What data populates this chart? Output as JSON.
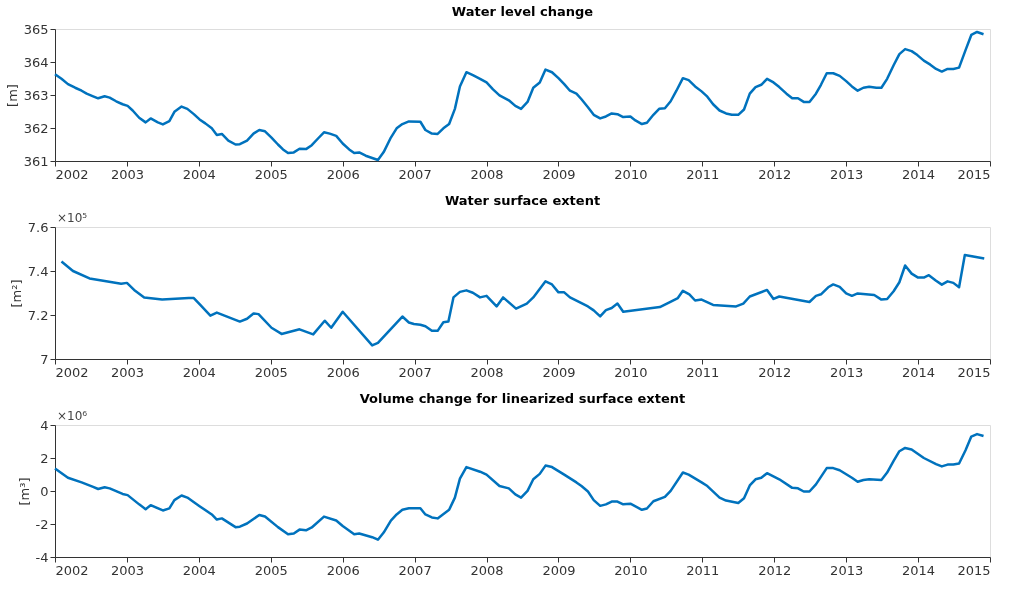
{
  "chart_data": [
    {
      "type": "line",
      "title": "Water level change",
      "ylabel": "[m]",
      "xlim": [
        2002,
        2015
      ],
      "xticks": [
        2002,
        2003,
        2004,
        2005,
        2006,
        2007,
        2008,
        2009,
        2010,
        2011,
        2012,
        2013,
        2014,
        2015
      ],
      "ylim": [
        361,
        365
      ],
      "yticks": [
        361,
        362,
        363,
        364,
        365
      ],
      "series": [
        {
          "color": "#0072bd",
          "x": [
            2002.0,
            2002.09,
            2002.18,
            2002.28,
            2002.37,
            2002.44,
            2002.53,
            2002.6,
            2002.69,
            2002.76,
            2002.85,
            2002.94,
            2003.01,
            2003.08,
            2003.17,
            2003.26,
            2003.33,
            2003.43,
            2003.5,
            2003.59,
            2003.66,
            2003.76,
            2003.84,
            2003.93,
            2004.01,
            2004.09,
            2004.18,
            2004.25,
            2004.32,
            2004.41,
            2004.51,
            2004.57,
            2004.67,
            2004.76,
            2004.84,
            2004.92,
            2005.01,
            2005.1,
            2005.17,
            2005.24,
            2005.32,
            2005.4,
            2005.49,
            2005.57,
            2005.66,
            2005.74,
            2005.82,
            2005.91,
            2006.0,
            2006.09,
            2006.16,
            2006.23,
            2006.32,
            2006.41,
            2006.49,
            2006.57,
            2006.67,
            2006.75,
            2006.83,
            2006.92,
            2007.08,
            2007.15,
            2007.24,
            2007.32,
            2007.4,
            2007.48,
            2007.56,
            2007.63,
            2007.72,
            2007.81,
            2007.91,
            2008.0,
            2008.09,
            2008.18,
            2008.31,
            2008.4,
            2008.48,
            2008.57,
            2008.65,
            2008.74,
            2008.82,
            2008.91,
            2009.0,
            2009.08,
            2009.16,
            2009.25,
            2009.32,
            2009.41,
            2009.49,
            2009.58,
            2009.66,
            2009.74,
            2009.82,
            2009.9,
            2010.0,
            2010.07,
            2010.16,
            2010.23,
            2010.32,
            2010.4,
            2010.48,
            2010.56,
            2010.64,
            2010.73,
            2010.81,
            2010.9,
            2010.99,
            2011.07,
            2011.15,
            2011.24,
            2011.33,
            2011.41,
            2011.5,
            2011.58,
            2011.66,
            2011.74,
            2011.82,
            2011.9,
            2011.99,
            2012.07,
            2012.17,
            2012.25,
            2012.33,
            2012.41,
            2012.49,
            2012.58,
            2012.65,
            2012.73,
            2012.82,
            2012.91,
            2013.0,
            2013.08,
            2013.16,
            2013.24,
            2013.32,
            2013.42,
            2013.49,
            2013.57,
            2013.66,
            2013.74,
            2013.82,
            2013.91,
            2013.99,
            2014.08,
            2014.17,
            2014.25,
            2014.33,
            2014.41,
            2014.49,
            2014.57,
            2014.66,
            2014.74,
            2014.82,
            2014.91
          ],
          "values": [
            363.63,
            363.49,
            363.33,
            363.22,
            363.13,
            363.04,
            362.96,
            362.9,
            362.96,
            362.92,
            362.81,
            362.72,
            362.67,
            362.53,
            362.31,
            362.17,
            362.29,
            362.17,
            362.11,
            362.21,
            362.49,
            362.65,
            362.58,
            362.42,
            362.26,
            362.14,
            361.99,
            361.79,
            361.82,
            361.62,
            361.5,
            361.51,
            361.62,
            361.83,
            361.94,
            361.9,
            361.71,
            361.5,
            361.35,
            361.24,
            361.26,
            361.37,
            361.36,
            361.48,
            361.69,
            361.87,
            361.83,
            361.76,
            361.53,
            361.35,
            361.24,
            361.26,
            361.16,
            361.09,
            361.03,
            361.27,
            361.71,
            361.99,
            362.12,
            362.2,
            362.19,
            361.94,
            361.83,
            361.82,
            361.99,
            362.12,
            362.58,
            363.26,
            363.69,
            363.6,
            363.49,
            363.38,
            363.17,
            362.99,
            362.84,
            362.67,
            362.58,
            362.79,
            363.22,
            363.38,
            363.77,
            363.69,
            363.51,
            363.33,
            363.13,
            363.04,
            362.87,
            362.63,
            362.4,
            362.29,
            362.35,
            362.44,
            362.42,
            362.33,
            362.35,
            362.23,
            362.12,
            362.16,
            362.4,
            362.58,
            362.6,
            362.81,
            363.13,
            363.51,
            363.45,
            363.26,
            363.11,
            362.95,
            362.72,
            362.53,
            362.44,
            362.4,
            362.4,
            362.56,
            363.04,
            363.24,
            363.31,
            363.49,
            363.38,
            363.24,
            363.04,
            362.9,
            362.9,
            362.79,
            362.79,
            363.04,
            363.31,
            363.66,
            363.66,
            363.58,
            363.42,
            363.26,
            363.13,
            363.22,
            363.25,
            363.22,
            363.22,
            363.49,
            363.9,
            364.24,
            364.39,
            364.33,
            364.21,
            364.04,
            363.92,
            363.79,
            363.71,
            363.79,
            363.79,
            363.83,
            364.36,
            364.82,
            364.91,
            364.84
          ]
        }
      ]
    },
    {
      "type": "line",
      "title": "Water surface extent",
      "ylabel": "[m²]",
      "annotations": [
        "×10⁵"
      ],
      "xlim": [
        2002,
        2015
      ],
      "xticks": [
        2002,
        2003,
        2004,
        2005,
        2006,
        2007,
        2008,
        2009,
        2010,
        2011,
        2012,
        2013,
        2014,
        2015
      ],
      "ylim": [
        7,
        7.6
      ],
      "yticks": [
        7,
        7.2,
        7.4,
        7.6
      ],
      "series": [
        {
          "color": "#0072bd",
          "x": [
            2002.09,
            2002.25,
            2002.48,
            2002.67,
            2002.92,
            2003.0,
            2003.1,
            2003.24,
            2003.49,
            2003.86,
            2003.93,
            2004.02,
            2004.16,
            2004.25,
            2004.57,
            2004.67,
            2004.76,
            2004.83,
            2005.01,
            2005.15,
            2005.4,
            2005.59,
            2005.75,
            2005.84,
            2006.0,
            2006.41,
            2006.49,
            2006.83,
            2006.92,
            2006.99,
            2007.08,
            2007.15,
            2007.24,
            2007.32,
            2007.4,
            2007.47,
            2007.54,
            2007.63,
            2007.72,
            2007.81,
            2007.91,
            2008.0,
            2008.14,
            2008.23,
            2008.41,
            2008.56,
            2008.65,
            2008.82,
            2008.91,
            2009.0,
            2009.08,
            2009.16,
            2009.41,
            2009.49,
            2009.58,
            2009.66,
            2009.74,
            2009.82,
            2009.9,
            2010.41,
            2010.55,
            2010.66,
            2010.73,
            2010.82,
            2010.9,
            2010.99,
            2011.15,
            2011.47,
            2011.57,
            2011.66,
            2011.9,
            2011.99,
            2012.07,
            2012.49,
            2012.58,
            2012.65,
            2012.75,
            2012.82,
            2012.91,
            2013.0,
            2013.08,
            2013.16,
            2013.39,
            2013.49,
            2013.57,
            2013.66,
            2013.74,
            2013.82,
            2013.91,
            2014.0,
            2014.08,
            2014.15,
            2014.25,
            2014.33,
            2014.41,
            2014.49,
            2014.57,
            2014.65,
            2014.92
          ],
          "values": [
            7.443,
            7.4,
            7.366,
            7.356,
            7.342,
            7.346,
            7.314,
            7.28,
            7.27,
            7.277,
            7.277,
            7.246,
            7.197,
            7.211,
            7.17,
            7.183,
            7.207,
            7.204,
            7.142,
            7.114,
            7.135,
            7.112,
            7.174,
            7.142,
            7.215,
            7.062,
            7.073,
            7.193,
            7.166,
            7.159,
            7.156,
            7.149,
            7.128,
            7.128,
            7.167,
            7.17,
            7.28,
            7.305,
            7.312,
            7.301,
            7.28,
            7.287,
            7.239,
            7.28,
            7.229,
            7.252,
            7.28,
            7.353,
            7.339,
            7.303,
            7.303,
            7.28,
            7.239,
            7.221,
            7.194,
            7.222,
            7.232,
            7.252,
            7.215,
            7.236,
            7.259,
            7.277,
            7.31,
            7.294,
            7.266,
            7.27,
            7.246,
            7.239,
            7.252,
            7.284,
            7.314,
            7.273,
            7.284,
            7.259,
            7.287,
            7.294,
            7.326,
            7.339,
            7.328,
            7.298,
            7.287,
            7.298,
            7.291,
            7.27,
            7.273,
            7.308,
            7.349,
            7.425,
            7.388,
            7.37,
            7.37,
            7.381,
            7.356,
            7.338,
            7.353,
            7.346,
            7.326,
            7.473,
            7.457
          ]
        }
      ]
    },
    {
      "type": "line",
      "title": "Volume change for linearized surface extent",
      "ylabel": "[m³]",
      "annotations": [
        "×10⁶"
      ],
      "xlim": [
        2002,
        2015
      ],
      "xticks": [
        2002,
        2003,
        2004,
        2005,
        2006,
        2007,
        2008,
        2009,
        2010,
        2011,
        2012,
        2013,
        2014,
        2015
      ],
      "ylim": [
        -4,
        4
      ],
      "yticks": [
        -4,
        -2,
        0,
        2,
        4
      ],
      "series": [
        {
          "color": "#0072bd",
          "x": [
            2002.0,
            2002.18,
            2002.37,
            2002.53,
            2002.6,
            2002.69,
            2002.76,
            2002.94,
            2003.01,
            2003.17,
            2003.26,
            2003.33,
            2003.5,
            2003.59,
            2003.66,
            2003.76,
            2003.84,
            2004.01,
            2004.18,
            2004.25,
            2004.32,
            2004.51,
            2004.57,
            2004.67,
            2004.84,
            2004.92,
            2005.1,
            2005.24,
            2005.32,
            2005.4,
            2005.49,
            2005.57,
            2005.74,
            2005.91,
            2006.0,
            2006.16,
            2006.23,
            2006.41,
            2006.49,
            2006.57,
            2006.67,
            2006.75,
            2006.83,
            2006.92,
            2007.08,
            2007.15,
            2007.24,
            2007.32,
            2007.48,
            2007.56,
            2007.63,
            2007.72,
            2007.91,
            2008.0,
            2008.18,
            2008.31,
            2008.4,
            2008.48,
            2008.57,
            2008.65,
            2008.74,
            2008.82,
            2008.91,
            2009.08,
            2009.25,
            2009.32,
            2009.41,
            2009.49,
            2009.58,
            2009.66,
            2009.74,
            2009.82,
            2009.9,
            2010.0,
            2010.16,
            2010.23,
            2010.32,
            2010.48,
            2010.56,
            2010.73,
            2010.81,
            2010.99,
            2011.07,
            2011.24,
            2011.33,
            2011.5,
            2011.58,
            2011.66,
            2011.74,
            2011.82,
            2011.9,
            2012.07,
            2012.25,
            2012.33,
            2012.41,
            2012.49,
            2012.58,
            2012.73,
            2012.82,
            2012.91,
            2013.08,
            2013.16,
            2013.24,
            2013.32,
            2013.49,
            2013.57,
            2013.66,
            2013.74,
            2013.82,
            2013.91,
            2014.08,
            2014.25,
            2014.33,
            2014.41,
            2014.49,
            2014.57,
            2014.66,
            2014.74,
            2014.82,
            2014.91
          ],
          "values": [
            1.36,
            0.8,
            0.52,
            0.25,
            0.12,
            0.23,
            0.16,
            -0.18,
            -0.25,
            -0.81,
            -1.1,
            -0.86,
            -1.18,
            -1.05,
            -0.55,
            -0.27,
            -0.4,
            -0.92,
            -1.42,
            -1.73,
            -1.66,
            -2.19,
            -2.16,
            -1.97,
            -1.45,
            -1.55,
            -2.19,
            -2.62,
            -2.58,
            -2.34,
            -2.38,
            -2.21,
            -1.55,
            -1.79,
            -2.12,
            -2.62,
            -2.58,
            -2.8,
            -2.95,
            -2.52,
            -1.79,
            -1.42,
            -1.14,
            -1.05,
            -1.05,
            -1.42,
            -1.6,
            -1.66,
            -1.14,
            -0.4,
            0.75,
            1.45,
            1.17,
            0.99,
            0.3,
            0.16,
            -0.21,
            -0.4,
            0.01,
            0.71,
            1.04,
            1.54,
            1.45,
            0.99,
            0.52,
            0.3,
            -0.03,
            -0.55,
            -0.9,
            -0.81,
            -0.64,
            -0.64,
            -0.81,
            -0.77,
            -1.14,
            -1.06,
            -0.62,
            -0.36,
            0.01,
            1.12,
            0.99,
            0.52,
            0.3,
            -0.4,
            -0.58,
            -0.73,
            -0.44,
            0.34,
            0.71,
            0.8,
            1.08,
            0.71,
            0.19,
            0.16,
            -0.03,
            -0.03,
            0.4,
            1.39,
            1.39,
            1.26,
            0.8,
            0.56,
            0.67,
            0.71,
            0.67,
            1.12,
            1.82,
            2.41,
            2.61,
            2.52,
            2.0,
            1.63,
            1.49,
            1.6,
            1.6,
            1.67,
            2.47,
            3.3,
            3.45,
            3.33
          ]
        }
      ]
    }
  ]
}
